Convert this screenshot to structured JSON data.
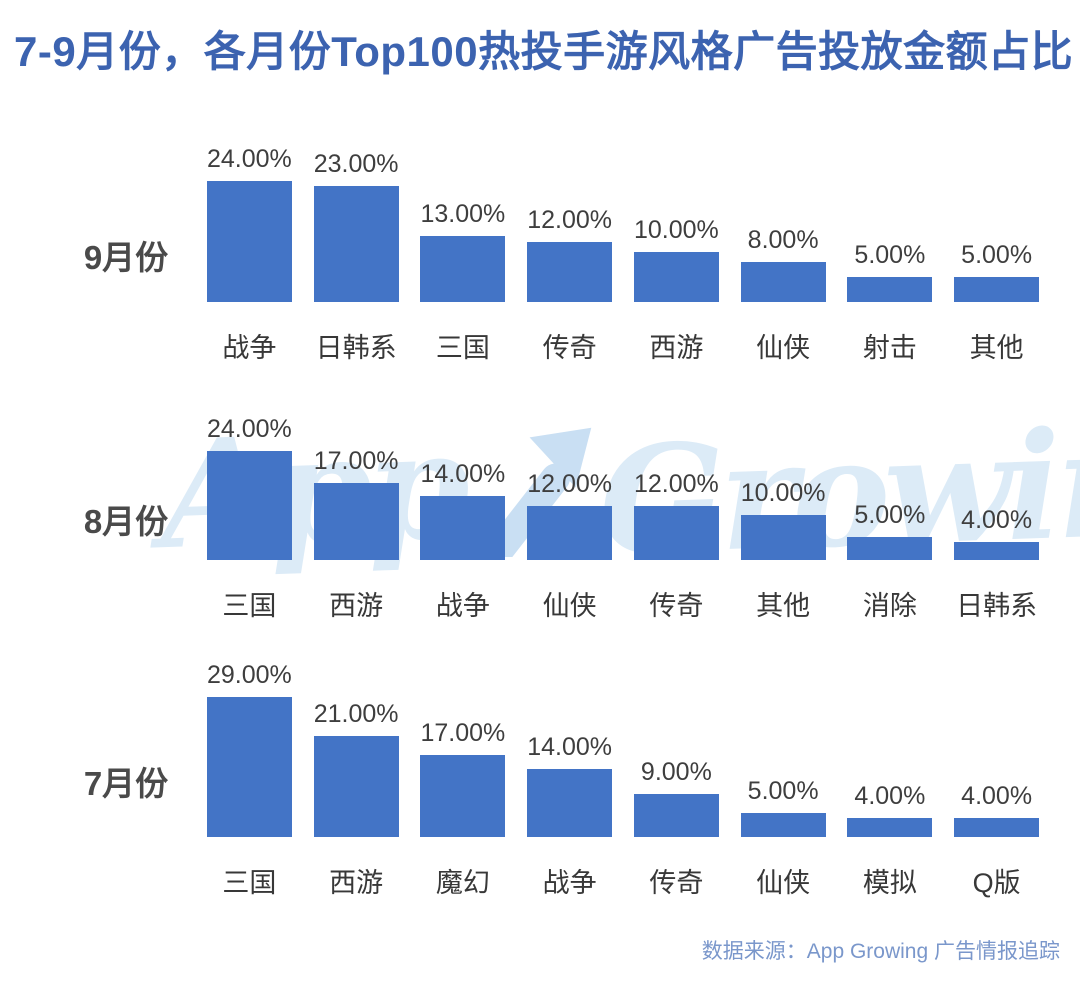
{
  "title": "7-9月份，各月份Top100热投手游风格广告投放金额占比",
  "watermark": {
    "text": "App Growing",
    "arrow_icon": "growth-arrow-icon"
  },
  "footer": {
    "source": "数据来源：App Growing 广告情报追踪"
  },
  "colors": {
    "bar": "#4374c6",
    "title": "#3c63b0",
    "value_label": "#3e3e3e",
    "category_label": "#383838",
    "month_label": "#4a4a4a",
    "footer_text": "#7a97cb",
    "watermark": "#dcebf7",
    "watermark_arrow": "#c9dff3",
    "background": "#ffffff"
  },
  "chart_data": [
    {
      "type": "bar",
      "group": "9月份",
      "unit": "percent",
      "value_format": "24.00%",
      "ylim": [
        0,
        30
      ],
      "grid": false,
      "categories": [
        "战争",
        "日韩系",
        "三国",
        "传奇",
        "西游",
        "仙侠",
        "射击",
        "其他"
      ],
      "values": [
        24,
        23,
        13,
        12,
        10,
        8,
        5,
        5
      ]
    },
    {
      "type": "bar",
      "group": "8月份",
      "unit": "percent",
      "ylim": [
        0,
        30
      ],
      "grid": false,
      "categories": [
        "三国",
        "西游",
        "战争",
        "仙侠",
        "传奇",
        "其他",
        "消除",
        "日韩系"
      ],
      "values": [
        24,
        17,
        14,
        12,
        12,
        10,
        5,
        4
      ]
    },
    {
      "type": "bar",
      "group": "7月份",
      "unit": "percent",
      "ylim": [
        0,
        30
      ],
      "grid": false,
      "categories": [
        "三国",
        "西游",
        "魔幻",
        "战争",
        "传奇",
        "仙侠",
        "模拟",
        "Q版"
      ],
      "values": [
        29,
        21,
        17,
        14,
        9,
        5,
        4,
        4
      ]
    }
  ]
}
